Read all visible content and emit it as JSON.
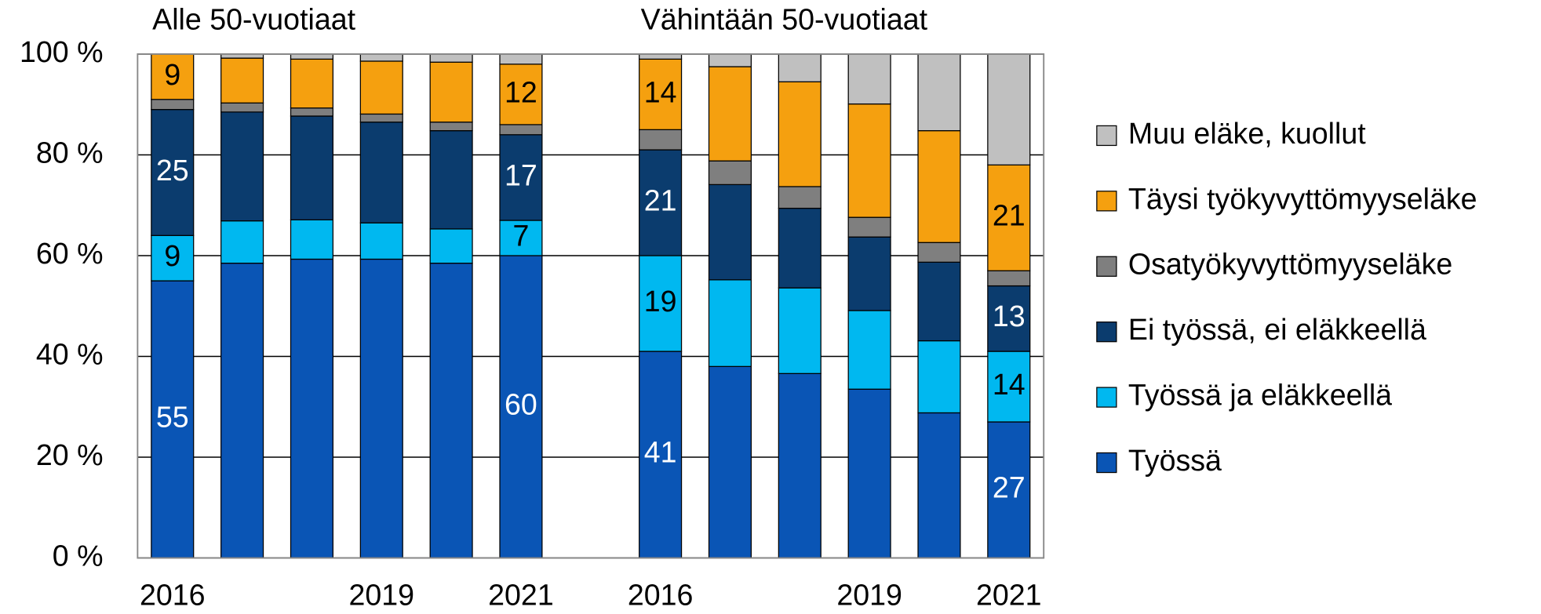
{
  "chart_data": {
    "type": "stacked_bar",
    "annotations": [
      "Alle 50-vuotiaat",
      "Vähintään 50-vuotiaat"
    ],
    "categories": [
      "2016",
      null,
      null,
      "2019",
      null,
      "2021",
      null,
      "2016",
      null,
      null,
      "2019",
      null,
      "2021"
    ],
    "ylim": [
      0,
      100
    ],
    "yticks": [
      {
        "value": 0,
        "label": "0 %"
      },
      {
        "value": 20,
        "label": "20 %"
      },
      {
        "value": 40,
        "label": "40 %"
      },
      {
        "value": 60,
        "label": "60 %"
      },
      {
        "value": 80,
        "label": "80 %"
      },
      {
        "value": 100,
        "label": "100 %"
      }
    ],
    "grid": true,
    "legend": "right",
    "series": [
      {
        "name": "Työssä",
        "color": "#0a55b5",
        "values": [
          55,
          58.5,
          59.3,
          59.3,
          58.5,
          60,
          null,
          41,
          38,
          36.6,
          33.5,
          28.8,
          27
        ],
        "value_labels": [
          "55",
          null,
          null,
          null,
          null,
          "60",
          null,
          "41",
          null,
          null,
          null,
          null,
          "27"
        ]
      },
      {
        "name": "Työssä ja eläkkeellä",
        "color": "#00b8f0",
        "values": [
          9,
          8.4,
          7.8,
          7.2,
          6.8,
          7,
          null,
          19,
          17.2,
          17,
          15.6,
          14.3,
          14
        ],
        "value_labels": [
          "9",
          null,
          null,
          null,
          null,
          "7",
          null,
          "19",
          null,
          null,
          null,
          null,
          "14"
        ]
      },
      {
        "name": "Ei työssä, ei eläkkeellä",
        "color": "#0b3c6e",
        "values": [
          25,
          21.6,
          20.6,
          20,
          19.5,
          17,
          null,
          21,
          18.9,
          15.8,
          14.6,
          15.6,
          13
        ],
        "value_labels": [
          "25",
          null,
          null,
          null,
          null,
          "17",
          null,
          "21",
          null,
          null,
          null,
          null,
          "13"
        ]
      },
      {
        "name": "Osatyökyvyttömyyseläke",
        "color": "#7f7f7f",
        "values": [
          2,
          1.8,
          1.6,
          1.6,
          1.7,
          2,
          null,
          4,
          4.7,
          4.3,
          3.9,
          3.9,
          3
        ]
      },
      {
        "name": "Täysi työkyvyttömyyseläke",
        "color": "#f5a00f",
        "values": [
          9,
          8.9,
          9.7,
          10.5,
          11.9,
          12,
          null,
          14,
          18.7,
          20.8,
          22.5,
          22.2,
          21
        ],
        "value_labels": [
          "9",
          null,
          null,
          null,
          null,
          "12",
          null,
          "14",
          null,
          null,
          null,
          null,
          "21"
        ]
      },
      {
        "name": "Muu eläke, kuollut",
        "color": "#c0c0c0",
        "values": [
          0,
          0.8,
          1.0,
          1.4,
          1.6,
          2,
          null,
          1,
          2.5,
          5.5,
          9.9,
          15.2,
          22
        ]
      }
    ]
  }
}
